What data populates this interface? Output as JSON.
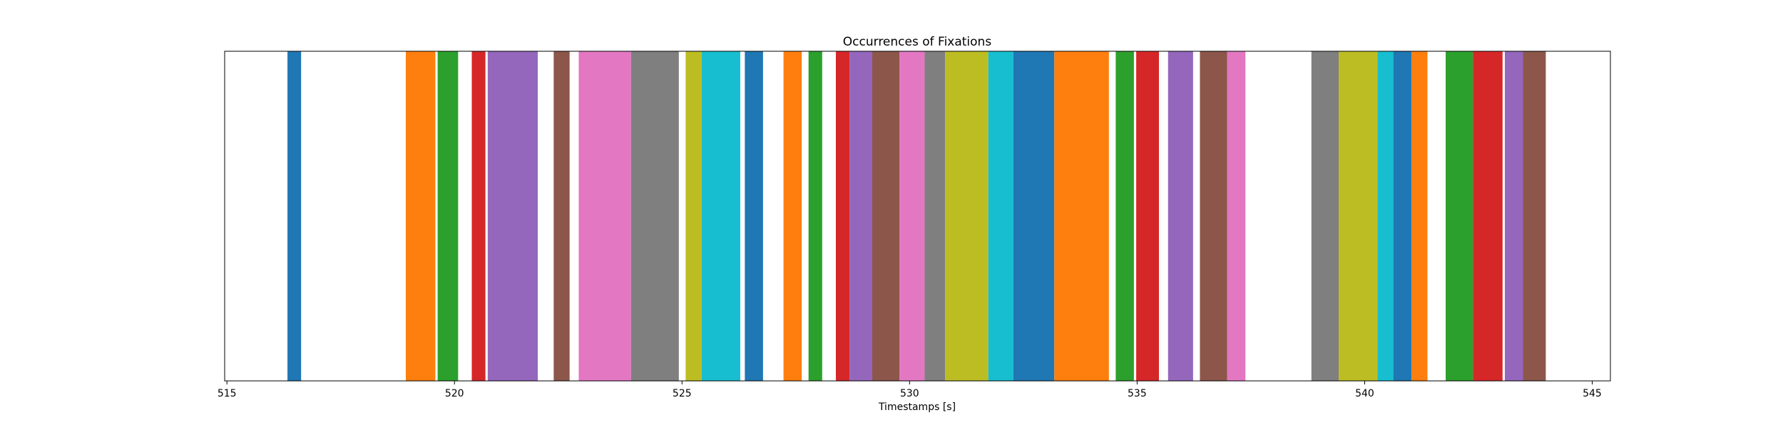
{
  "chart_data": {
    "type": "bar",
    "title": "Occurrences of Fixations",
    "xlabel": "Timestamps [s]",
    "ylabel": "",
    "xlim": [
      514.95,
      545.4
    ],
    "ylim": [
      0,
      1
    ],
    "x_ticks": [
      515,
      520,
      525,
      530,
      535,
      540,
      545
    ],
    "grid": false,
    "legend": "none",
    "palette": [
      "#1f77b4",
      "#ff7f0e",
      "#2ca02c",
      "#d62728",
      "#9467bd",
      "#8c564b",
      "#e377c2",
      "#7f7f7f",
      "#bcbd22",
      "#17becf"
    ],
    "intervals": [
      {
        "start": 516.33,
        "end": 516.63
      },
      {
        "start": 518.93,
        "end": 519.58
      },
      {
        "start": 519.63,
        "end": 520.08
      },
      {
        "start": 520.38,
        "end": 520.68
      },
      {
        "start": 520.73,
        "end": 521.83
      },
      {
        "start": 522.18,
        "end": 522.53
      },
      {
        "start": 522.73,
        "end": 523.88
      },
      {
        "start": 523.88,
        "end": 524.93
      },
      {
        "start": 525.08,
        "end": 525.43
      },
      {
        "start": 525.43,
        "end": 526.28
      },
      {
        "start": 526.38,
        "end": 526.78
      },
      {
        "start": 527.23,
        "end": 527.63
      },
      {
        "start": 527.78,
        "end": 528.08
      },
      {
        "start": 528.38,
        "end": 528.68
      },
      {
        "start": 528.68,
        "end": 529.18
      },
      {
        "start": 529.18,
        "end": 529.78
      },
      {
        "start": 529.78,
        "end": 530.33
      },
      {
        "start": 530.33,
        "end": 530.78
      },
      {
        "start": 530.78,
        "end": 531.73
      },
      {
        "start": 531.73,
        "end": 532.28
      },
      {
        "start": 532.28,
        "end": 533.18
      },
      {
        "start": 533.18,
        "end": 534.38
      },
      {
        "start": 534.53,
        "end": 534.93
      },
      {
        "start": 534.98,
        "end": 535.48
      },
      {
        "start": 535.68,
        "end": 536.23
      },
      {
        "start": 536.38,
        "end": 536.98
      },
      {
        "start": 536.98,
        "end": 537.38
      },
      {
        "start": 538.83,
        "end": 539.43
      },
      {
        "start": 539.43,
        "end": 540.28
      },
      {
        "start": 540.28,
        "end": 540.63
      },
      {
        "start": 540.63,
        "end": 541.03
      },
      {
        "start": 541.03,
        "end": 541.38
      },
      {
        "start": 541.78,
        "end": 542.38
      },
      {
        "start": 542.38,
        "end": 543.03
      },
      {
        "start": 543.08,
        "end": 543.48
      },
      {
        "start": 543.48,
        "end": 543.98
      }
    ]
  }
}
